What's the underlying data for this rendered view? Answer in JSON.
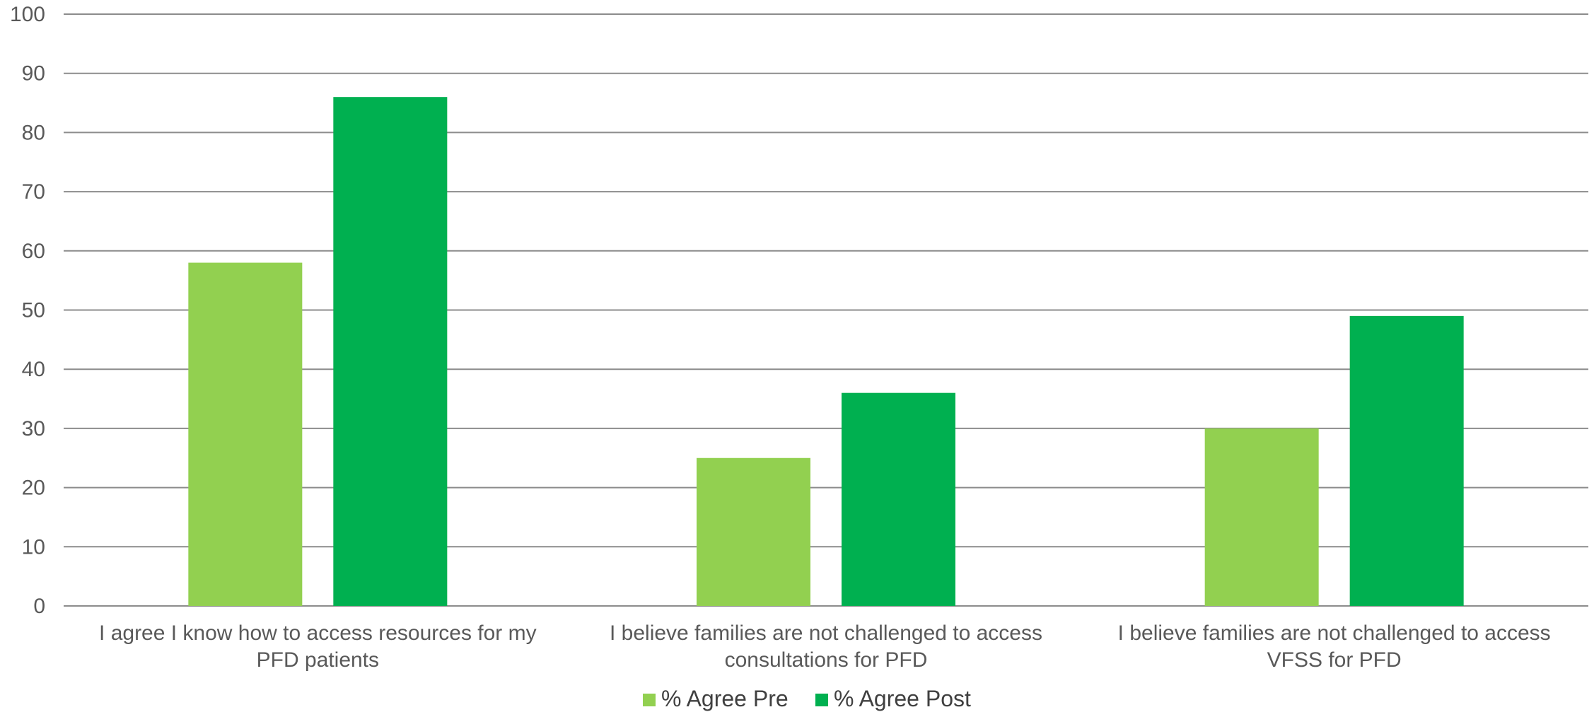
{
  "chart_data": {
    "type": "bar",
    "categories": [
      [
        "I agree I know how to access resources for my",
        "PFD patients"
      ],
      [
        "I believe families are not challenged to access",
        "consultations for PFD"
      ],
      [
        "I believe families are not challenged to access",
        "VFSS for PFD"
      ]
    ],
    "series": [
      {
        "name": "% Agree Pre",
        "values": [
          58,
          25,
          30
        ],
        "color": "#92d050"
      },
      {
        "name": "% Agree Post",
        "values": [
          86,
          36,
          49
        ],
        "color": "#00b050"
      }
    ],
    "ylim": [
      0,
      100
    ],
    "yticks": [
      0,
      10,
      20,
      30,
      40,
      50,
      60,
      70,
      80,
      90,
      100
    ],
    "grid": true,
    "gridColor": "#8c8c8c",
    "legend": "bottom"
  }
}
